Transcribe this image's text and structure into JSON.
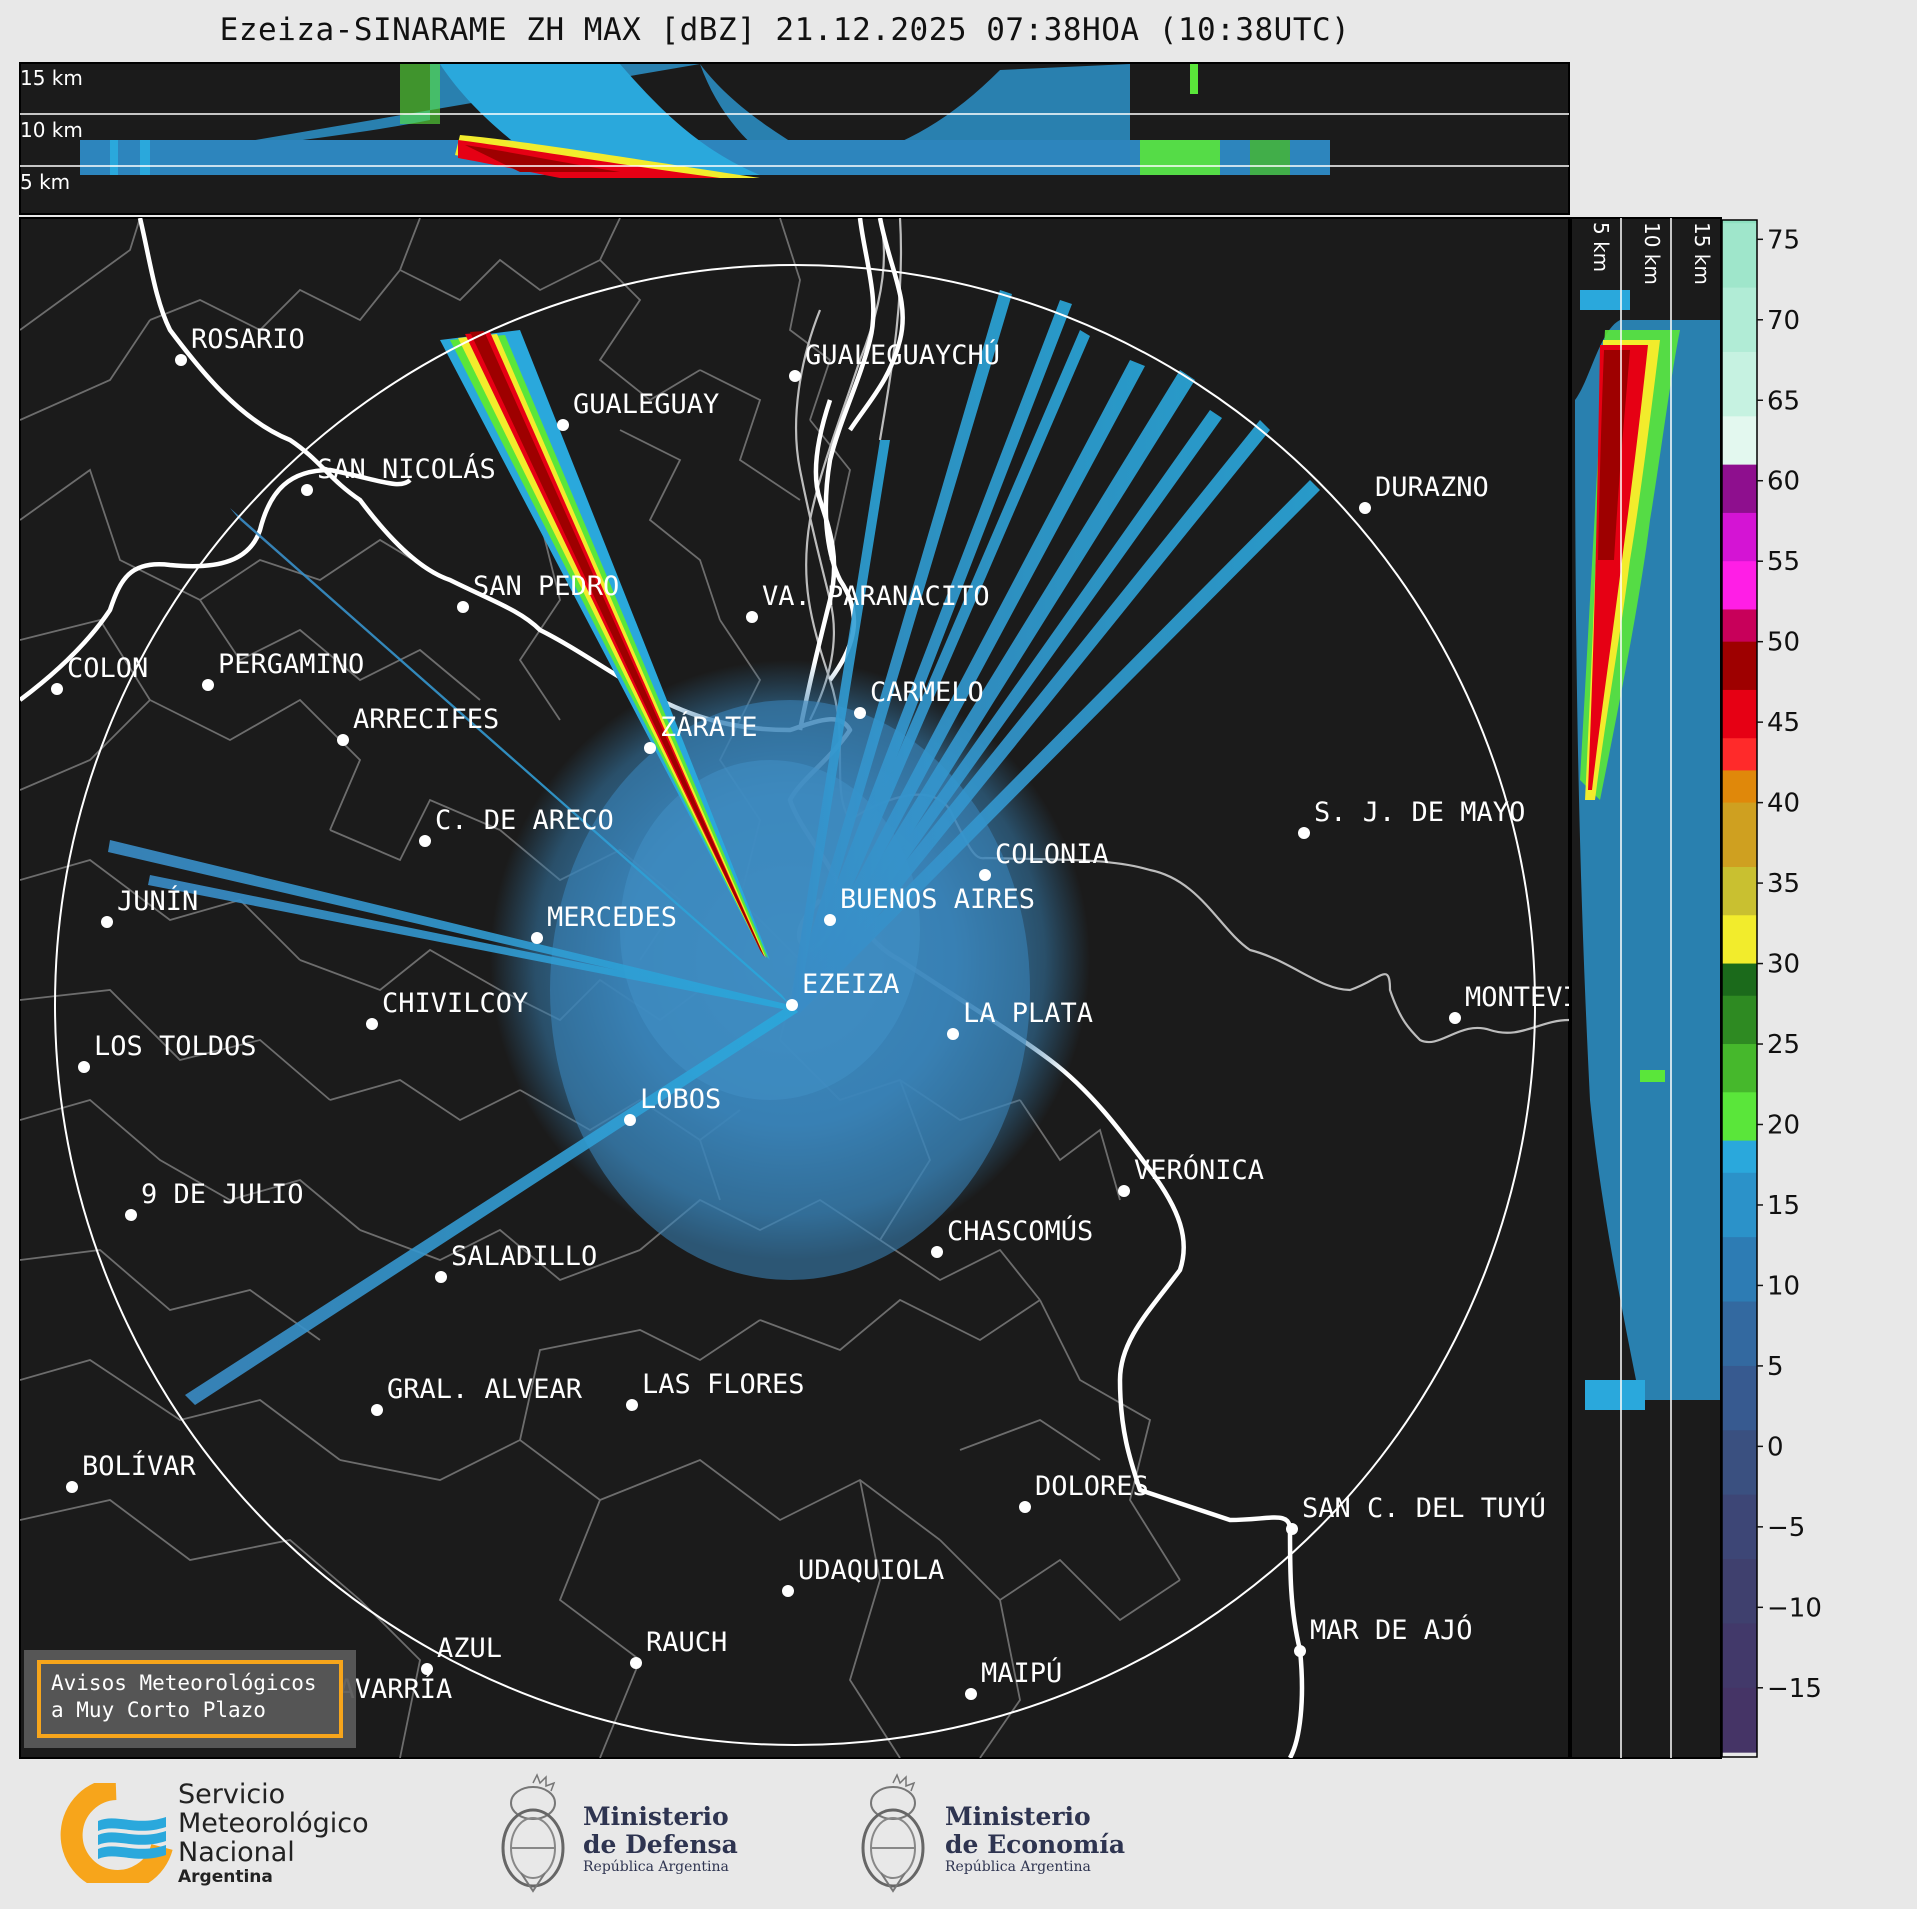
{
  "title": "Ezeiza-SINARAME ZH MAX [dBZ] 21.12.2025 07:38HOA (10:38UTC)",
  "height_labels_top": [
    "15 km",
    "10 km",
    "5 km"
  ],
  "height_labels_side": [
    "5 km",
    "10 km",
    "15 km"
  ],
  "colorbar": {
    "ticks": [
      "75",
      "70",
      "65",
      "60",
      "55",
      "50",
      "45",
      "40",
      "35",
      "30",
      "25",
      "20",
      "15",
      "10",
      "5",
      "0",
      "−5",
      "−10",
      "−15"
    ],
    "stops": [
      {
        "dbz": 76,
        "color": "#8de0c0"
      },
      {
        "dbz": 72,
        "color": "#9fe6cb"
      },
      {
        "dbz": 68,
        "color": "#b1ecd6"
      },
      {
        "dbz": 64,
        "color": "#c6f2e1"
      },
      {
        "dbz": 61,
        "color": "#e3f8ef"
      },
      {
        "dbz": 58,
        "color": "#8e0f8e"
      },
      {
        "dbz": 55,
        "color": "#d414d4"
      },
      {
        "dbz": 52,
        "color": "#ff1ee6"
      },
      {
        "dbz": 50,
        "color": "#c8005a"
      },
      {
        "dbz": 47,
        "color": "#9e0000"
      },
      {
        "dbz": 44,
        "color": "#e60014"
      },
      {
        "dbz": 42,
        "color": "#ff2a2a"
      },
      {
        "dbz": 40,
        "color": "#e0880a"
      },
      {
        "dbz": 36,
        "color": "#cfa020"
      },
      {
        "dbz": 33,
        "color": "#c9c030"
      },
      {
        "dbz": 30,
        "color": "#f2ec2c"
      },
      {
        "dbz": 28,
        "color": "#1b6a1b"
      },
      {
        "dbz": 25,
        "color": "#2e8a22"
      },
      {
        "dbz": 22,
        "color": "#46b82c"
      },
      {
        "dbz": 19,
        "color": "#5ae63a"
      },
      {
        "dbz": 17,
        "color": "#2aa8dc"
      },
      {
        "dbz": 13,
        "color": "#2b92c9"
      },
      {
        "dbz": 9,
        "color": "#2d7cb4"
      },
      {
        "dbz": 5,
        "color": "#3369a0"
      },
      {
        "dbz": 1,
        "color": "#375a90"
      },
      {
        "dbz": -3,
        "color": "#3a5080"
      },
      {
        "dbz": -7,
        "color": "#3d4676"
      },
      {
        "dbz": -11,
        "color": "#3f406e"
      },
      {
        "dbz": -15,
        "color": "#42396a"
      },
      {
        "dbz": -19,
        "color": "#453466"
      }
    ]
  },
  "cities": [
    {
      "name": "ROSARIO"
    },
    {
      "name": "GUALEGUAYCHÚ"
    },
    {
      "name": "GUALEGUAY"
    },
    {
      "name": "SAN NICOLÁS"
    },
    {
      "name": "DURAZNO"
    },
    {
      "name": "SAN PEDRO"
    },
    {
      "name": "VA. PARANACITO"
    },
    {
      "name": "COLON"
    },
    {
      "name": "PERGAMINO"
    },
    {
      "name": "CARMELO"
    },
    {
      "name": "ARRECIFES"
    },
    {
      "name": "ZÁRATE"
    },
    {
      "name": "S. J. DE MAYO"
    },
    {
      "name": "C. DE ARECO"
    },
    {
      "name": "COLONIA"
    },
    {
      "name": "BUENOS AIRES"
    },
    {
      "name": "JUNÍN"
    },
    {
      "name": "MERCEDES"
    },
    {
      "name": "MONTEVIDEO"
    },
    {
      "name": "EZEIZA"
    },
    {
      "name": "CHIVILCOY"
    },
    {
      "name": "LA PLATA"
    },
    {
      "name": "LOS TOLDOS"
    },
    {
      "name": "LOBOS"
    },
    {
      "name": "VERÓNICA"
    },
    {
      "name": "9 DE JULIO"
    },
    {
      "name": "CHASCOMÚS"
    },
    {
      "name": "SALADILLO"
    },
    {
      "name": "GRAL. ALVEAR"
    },
    {
      "name": "LAS FLORES"
    },
    {
      "name": "BOLÍVAR"
    },
    {
      "name": "DOLORES"
    },
    {
      "name": "SAN C. DEL TUYÚ"
    },
    {
      "name": "UDAQUIOLA"
    },
    {
      "name": "MAR DE AJÓ"
    },
    {
      "name": "AZUL"
    },
    {
      "name": "RAUCH"
    },
    {
      "name": "OLAVARRÍA"
    },
    {
      "name": "MAIPÚ"
    }
  ],
  "warning": {
    "line1": "Avisos Meteorológicos",
    "line2": "a Muy Corto Plazo"
  },
  "logos": {
    "smn": {
      "line1": "Servicio",
      "line2": "Meteorológico",
      "line3": "Nacional",
      "line4": "Argentina"
    },
    "defensa": {
      "line1": "Ministerio",
      "line2": "de Defensa",
      "line3": "República Argentina"
    },
    "economia": {
      "line1": "Ministerio",
      "line2": "de Economía",
      "line3": "República Argentina"
    }
  },
  "colors": {
    "background": "#1b1b1b",
    "page": "#e8e8e8",
    "smn_orange": "#f7a51b",
    "smn_blue": "#2aa8dc"
  }
}
